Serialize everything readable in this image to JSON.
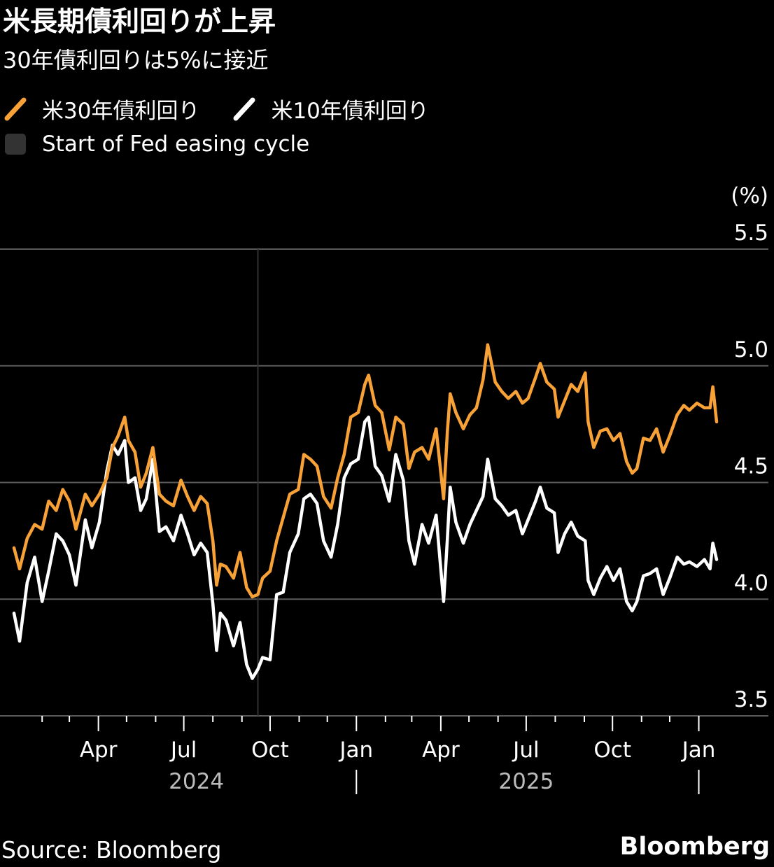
{
  "title": "米長期債利回りが上昇",
  "subtitle": "30年債利回りは5%に接近",
  "source": "Source: Bloomberg",
  "brand": "Bloomberg",
  "colors": {
    "background": "#000000",
    "series_30y": "#F7A136",
    "series_10y": "#FFFFFF",
    "fed_marker": "#333333",
    "grid": "#5A5A5A",
    "axis_text": "#FFFFFF",
    "year_text": "#BBBBBB"
  },
  "chart_data": {
    "type": "line",
    "ylabel": "(%)",
    "ylim": [
      3.4,
      5.5
    ],
    "y_ticks": [
      3.5,
      4.0,
      4.5,
      5.0,
      5.5
    ],
    "y_tick_labels": [
      "3.5",
      "4.0",
      "4.5",
      "5.0",
      "5.5"
    ],
    "grid": true,
    "x_tick_labels": [
      {
        "label": "Apr",
        "date": "2024-04-01"
      },
      {
        "label": "Jul",
        "date": "2024-07-01"
      },
      {
        "label": "Oct",
        "date": "2024-10-01"
      },
      {
        "label": "Jan",
        "date": "2025-01-01"
      },
      {
        "label": "Apr",
        "date": "2025-04-01"
      },
      {
        "label": "Jul",
        "date": "2025-07-01"
      },
      {
        "label": "Oct",
        "date": "2025-10-01"
      },
      {
        "label": "Jan",
        "date": "2026-01-01"
      }
    ],
    "year_labels": [
      {
        "label": "2024",
        "date": "2024-07-01"
      },
      {
        "label": "2025",
        "date": "2025-07-01"
      }
    ],
    "year_separators": [
      "2025-01-01",
      "2026-01-01"
    ],
    "minor_ticks": [
      "2024-02-01",
      "2024-03-01",
      "2024-05-01",
      "2024-06-01",
      "2024-08-01",
      "2024-09-01",
      "2024-11-01",
      "2024-12-01",
      "2025-02-01",
      "2025-03-01",
      "2025-05-01",
      "2025-06-01",
      "2025-08-01",
      "2025-09-01",
      "2025-11-01",
      "2025-12-01"
    ],
    "x_start": "2024-01-02",
    "x_end": "2026-01-20",
    "legend": [
      {
        "label": "米30年債利回り",
        "type": "line",
        "color": "#F7A136"
      },
      {
        "label": "米10年債利回り",
        "type": "line",
        "color": "#FFFFFF"
      },
      {
        "label": "Start of Fed easing cycle",
        "type": "box",
        "color": "#333333"
      }
    ],
    "annotations": [
      {
        "label": "Start of Fed easing cycle",
        "date": "2024-09-18"
      }
    ],
    "series": [
      {
        "name": "米30年債利回り",
        "color": "#F7A136",
        "points": [
          [
            "2024-01-02",
            4.22
          ],
          [
            "2024-01-08",
            4.13
          ],
          [
            "2024-01-16",
            4.26
          ],
          [
            "2024-01-24",
            4.32
          ],
          [
            "2024-02-01",
            4.3
          ],
          [
            "2024-02-08",
            4.42
          ],
          [
            "2024-02-16",
            4.38
          ],
          [
            "2024-02-23",
            4.47
          ],
          [
            "2024-03-01",
            4.42
          ],
          [
            "2024-03-08",
            4.3
          ],
          [
            "2024-03-18",
            4.45
          ],
          [
            "2024-03-25",
            4.4
          ],
          [
            "2024-04-02",
            4.45
          ],
          [
            "2024-04-10",
            4.52
          ],
          [
            "2024-04-16",
            4.65
          ],
          [
            "2024-04-22",
            4.7
          ],
          [
            "2024-04-29",
            4.78
          ],
          [
            "2024-05-03",
            4.68
          ],
          [
            "2024-05-10",
            4.63
          ],
          [
            "2024-05-16",
            4.48
          ],
          [
            "2024-05-22",
            4.54
          ],
          [
            "2024-05-29",
            4.65
          ],
          [
            "2024-06-05",
            4.45
          ],
          [
            "2024-06-12",
            4.42
          ],
          [
            "2024-06-20",
            4.4
          ],
          [
            "2024-06-28",
            4.51
          ],
          [
            "2024-07-05",
            4.44
          ],
          [
            "2024-07-12",
            4.38
          ],
          [
            "2024-07-19",
            4.44
          ],
          [
            "2024-07-26",
            4.41
          ],
          [
            "2024-08-01",
            4.25
          ],
          [
            "2024-08-05",
            4.06
          ],
          [
            "2024-08-09",
            4.15
          ],
          [
            "2024-08-15",
            4.14
          ],
          [
            "2024-08-23",
            4.09
          ],
          [
            "2024-08-30",
            4.2
          ],
          [
            "2024-09-06",
            4.05
          ],
          [
            "2024-09-12",
            4.01
          ],
          [
            "2024-09-18",
            4.02
          ],
          [
            "2024-09-23",
            4.09
          ],
          [
            "2024-10-01",
            4.12
          ],
          [
            "2024-10-08",
            4.25
          ],
          [
            "2024-10-15",
            4.35
          ],
          [
            "2024-10-22",
            4.45
          ],
          [
            "2024-10-31",
            4.47
          ],
          [
            "2024-11-06",
            4.62
          ],
          [
            "2024-11-13",
            4.6
          ],
          [
            "2024-11-20",
            4.57
          ],
          [
            "2024-11-27",
            4.44
          ],
          [
            "2024-12-05",
            4.39
          ],
          [
            "2024-12-12",
            4.52
          ],
          [
            "2024-12-19",
            4.62
          ],
          [
            "2024-12-26",
            4.78
          ],
          [
            "2025-01-03",
            4.8
          ],
          [
            "2025-01-10",
            4.92
          ],
          [
            "2025-01-14",
            4.96
          ],
          [
            "2025-01-21",
            4.83
          ],
          [
            "2025-01-28",
            4.8
          ],
          [
            "2025-02-05",
            4.64
          ],
          [
            "2025-02-12",
            4.78
          ],
          [
            "2025-02-20",
            4.75
          ],
          [
            "2025-02-26",
            4.56
          ],
          [
            "2025-03-04",
            4.63
          ],
          [
            "2025-03-12",
            4.65
          ],
          [
            "2025-03-19",
            4.6
          ],
          [
            "2025-03-27",
            4.73
          ],
          [
            "2025-04-04",
            4.43
          ],
          [
            "2025-04-08",
            4.72
          ],
          [
            "2025-04-11",
            4.88
          ],
          [
            "2025-04-17",
            4.8
          ],
          [
            "2025-04-25",
            4.73
          ],
          [
            "2025-05-02",
            4.79
          ],
          [
            "2025-05-09",
            4.82
          ],
          [
            "2025-05-16",
            4.94
          ],
          [
            "2025-05-21",
            5.09
          ],
          [
            "2025-05-29",
            4.93
          ],
          [
            "2025-06-05",
            4.89
          ],
          [
            "2025-06-12",
            4.86
          ],
          [
            "2025-06-20",
            4.89
          ],
          [
            "2025-06-27",
            4.84
          ],
          [
            "2025-07-03",
            4.86
          ],
          [
            "2025-07-11",
            4.95
          ],
          [
            "2025-07-16",
            5.01
          ],
          [
            "2025-07-23",
            4.93
          ],
          [
            "2025-07-31",
            4.9
          ],
          [
            "2025-08-04",
            4.78
          ],
          [
            "2025-08-11",
            4.85
          ],
          [
            "2025-08-18",
            4.92
          ],
          [
            "2025-08-25",
            4.89
          ],
          [
            "2025-09-02",
            4.97
          ],
          [
            "2025-09-05",
            4.76
          ],
          [
            "2025-09-11",
            4.65
          ],
          [
            "2025-09-18",
            4.72
          ],
          [
            "2025-09-25",
            4.73
          ],
          [
            "2025-10-02",
            4.68
          ],
          [
            "2025-10-09",
            4.71
          ],
          [
            "2025-10-16",
            4.59
          ],
          [
            "2025-10-22",
            4.54
          ],
          [
            "2025-10-27",
            4.56
          ],
          [
            "2025-11-03",
            4.69
          ],
          [
            "2025-11-10",
            4.68
          ],
          [
            "2025-11-17",
            4.73
          ],
          [
            "2025-11-24",
            4.63
          ],
          [
            "2025-12-01",
            4.7
          ],
          [
            "2025-12-09",
            4.79
          ],
          [
            "2025-12-16",
            4.83
          ],
          [
            "2025-12-22",
            4.81
          ],
          [
            "2025-12-30",
            4.84
          ],
          [
            "2026-01-07",
            4.82
          ],
          [
            "2026-01-13",
            4.82
          ],
          [
            "2026-01-16",
            4.91
          ],
          [
            "2026-01-20",
            4.76
          ]
        ]
      },
      {
        "name": "米10年債利回り",
        "color": "#FFFFFF",
        "points": [
          [
            "2024-01-02",
            3.94
          ],
          [
            "2024-01-08",
            3.82
          ],
          [
            "2024-01-16",
            4.07
          ],
          [
            "2024-01-24",
            4.18
          ],
          [
            "2024-02-01",
            3.99
          ],
          [
            "2024-02-08",
            4.12
          ],
          [
            "2024-02-16",
            4.28
          ],
          [
            "2024-02-23",
            4.25
          ],
          [
            "2024-03-01",
            4.19
          ],
          [
            "2024-03-08",
            4.06
          ],
          [
            "2024-03-18",
            4.34
          ],
          [
            "2024-03-25",
            4.22
          ],
          [
            "2024-04-02",
            4.33
          ],
          [
            "2024-04-10",
            4.55
          ],
          [
            "2024-04-16",
            4.66
          ],
          [
            "2024-04-22",
            4.62
          ],
          [
            "2024-04-29",
            4.68
          ],
          [
            "2024-05-03",
            4.5
          ],
          [
            "2024-05-10",
            4.52
          ],
          [
            "2024-05-16",
            4.38
          ],
          [
            "2024-05-22",
            4.43
          ],
          [
            "2024-05-29",
            4.6
          ],
          [
            "2024-06-05",
            4.29
          ],
          [
            "2024-06-12",
            4.31
          ],
          [
            "2024-06-20",
            4.25
          ],
          [
            "2024-06-28",
            4.36
          ],
          [
            "2024-07-05",
            4.28
          ],
          [
            "2024-07-12",
            4.19
          ],
          [
            "2024-07-19",
            4.24
          ],
          [
            "2024-07-26",
            4.2
          ],
          [
            "2024-08-01",
            3.98
          ],
          [
            "2024-08-05",
            3.78
          ],
          [
            "2024-08-09",
            3.94
          ],
          [
            "2024-08-15",
            3.91
          ],
          [
            "2024-08-23",
            3.8
          ],
          [
            "2024-08-30",
            3.9
          ],
          [
            "2024-09-06",
            3.72
          ],
          [
            "2024-09-12",
            3.66
          ],
          [
            "2024-09-18",
            3.7
          ],
          [
            "2024-09-23",
            3.75
          ],
          [
            "2024-10-01",
            3.74
          ],
          [
            "2024-10-08",
            4.02
          ],
          [
            "2024-10-15",
            4.03
          ],
          [
            "2024-10-22",
            4.2
          ],
          [
            "2024-10-31",
            4.28
          ],
          [
            "2024-11-06",
            4.43
          ],
          [
            "2024-11-13",
            4.45
          ],
          [
            "2024-11-20",
            4.41
          ],
          [
            "2024-11-27",
            4.25
          ],
          [
            "2024-12-05",
            4.18
          ],
          [
            "2024-12-12",
            4.32
          ],
          [
            "2024-12-19",
            4.52
          ],
          [
            "2024-12-26",
            4.58
          ],
          [
            "2025-01-03",
            4.6
          ],
          [
            "2025-01-10",
            4.76
          ],
          [
            "2025-01-14",
            4.78
          ],
          [
            "2025-01-21",
            4.57
          ],
          [
            "2025-01-28",
            4.53
          ],
          [
            "2025-02-05",
            4.42
          ],
          [
            "2025-02-12",
            4.62
          ],
          [
            "2025-02-20",
            4.51
          ],
          [
            "2025-02-26",
            4.25
          ],
          [
            "2025-03-04",
            4.15
          ],
          [
            "2025-03-12",
            4.32
          ],
          [
            "2025-03-19",
            4.24
          ],
          [
            "2025-03-27",
            4.36
          ],
          [
            "2025-04-04",
            3.99
          ],
          [
            "2025-04-08",
            4.26
          ],
          [
            "2025-04-11",
            4.48
          ],
          [
            "2025-04-17",
            4.33
          ],
          [
            "2025-04-25",
            4.24
          ],
          [
            "2025-05-02",
            4.32
          ],
          [
            "2025-05-09",
            4.38
          ],
          [
            "2025-05-16",
            4.44
          ],
          [
            "2025-05-21",
            4.6
          ],
          [
            "2025-05-29",
            4.43
          ],
          [
            "2025-06-05",
            4.4
          ],
          [
            "2025-06-12",
            4.36
          ],
          [
            "2025-06-20",
            4.38
          ],
          [
            "2025-06-27",
            4.28
          ],
          [
            "2025-07-03",
            4.34
          ],
          [
            "2025-07-11",
            4.42
          ],
          [
            "2025-07-16",
            4.48
          ],
          [
            "2025-07-23",
            4.39
          ],
          [
            "2025-07-31",
            4.37
          ],
          [
            "2025-08-04",
            4.2
          ],
          [
            "2025-08-11",
            4.28
          ],
          [
            "2025-08-18",
            4.33
          ],
          [
            "2025-08-25",
            4.27
          ],
          [
            "2025-09-02",
            4.25
          ],
          [
            "2025-09-05",
            4.08
          ],
          [
            "2025-09-11",
            4.02
          ],
          [
            "2025-09-18",
            4.09
          ],
          [
            "2025-09-25",
            4.14
          ],
          [
            "2025-10-02",
            4.08
          ],
          [
            "2025-10-09",
            4.13
          ],
          [
            "2025-10-16",
            3.99
          ],
          [
            "2025-10-22",
            3.95
          ],
          [
            "2025-10-27",
            3.99
          ],
          [
            "2025-11-03",
            4.1
          ],
          [
            "2025-11-10",
            4.11
          ],
          [
            "2025-11-17",
            4.13
          ],
          [
            "2025-11-24",
            4.02
          ],
          [
            "2025-12-01",
            4.09
          ],
          [
            "2025-12-09",
            4.18
          ],
          [
            "2025-12-16",
            4.15
          ],
          [
            "2025-12-22",
            4.16
          ],
          [
            "2025-12-30",
            4.14
          ],
          [
            "2026-01-07",
            4.17
          ],
          [
            "2026-01-13",
            4.13
          ],
          [
            "2026-01-16",
            4.24
          ],
          [
            "2026-01-20",
            4.17
          ]
        ]
      }
    ]
  }
}
